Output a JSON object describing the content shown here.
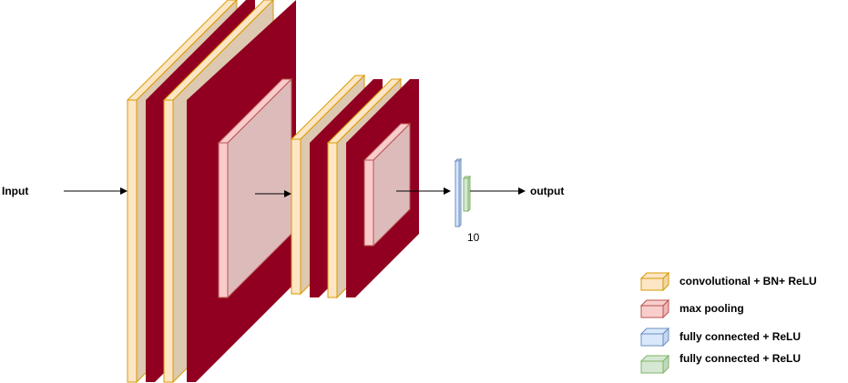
{
  "labels": {
    "input": "Input",
    "output": "output",
    "fc_size": "10"
  },
  "legend": [
    {
      "text": "convolutional + BN+ ReLU",
      "icon": "conv-block-icon"
    },
    {
      "text": "max pooling",
      "icon": "pooling-block-icon"
    },
    {
      "text": "fully connected + ReLU",
      "icon": "fc-blue-block-icon"
    },
    {
      "text": "fully connected + ReLU",
      "icon": "fc-green-block-icon"
    }
  ],
  "colors": {
    "conv_front": "#fde6c6",
    "conv_stroke": "#d79b00",
    "conv_side": "#ddc8b0",
    "dark_red": "#910020",
    "pool_front": "#f9cbcb",
    "pool_stroke": "#b85450",
    "pool_face": "#debbbb",
    "fc_blue": "#dae8fc",
    "fc_blue_stroke": "#6c8ebf",
    "fc_green": "#d5e8d4",
    "fc_green_stroke": "#82b366"
  }
}
